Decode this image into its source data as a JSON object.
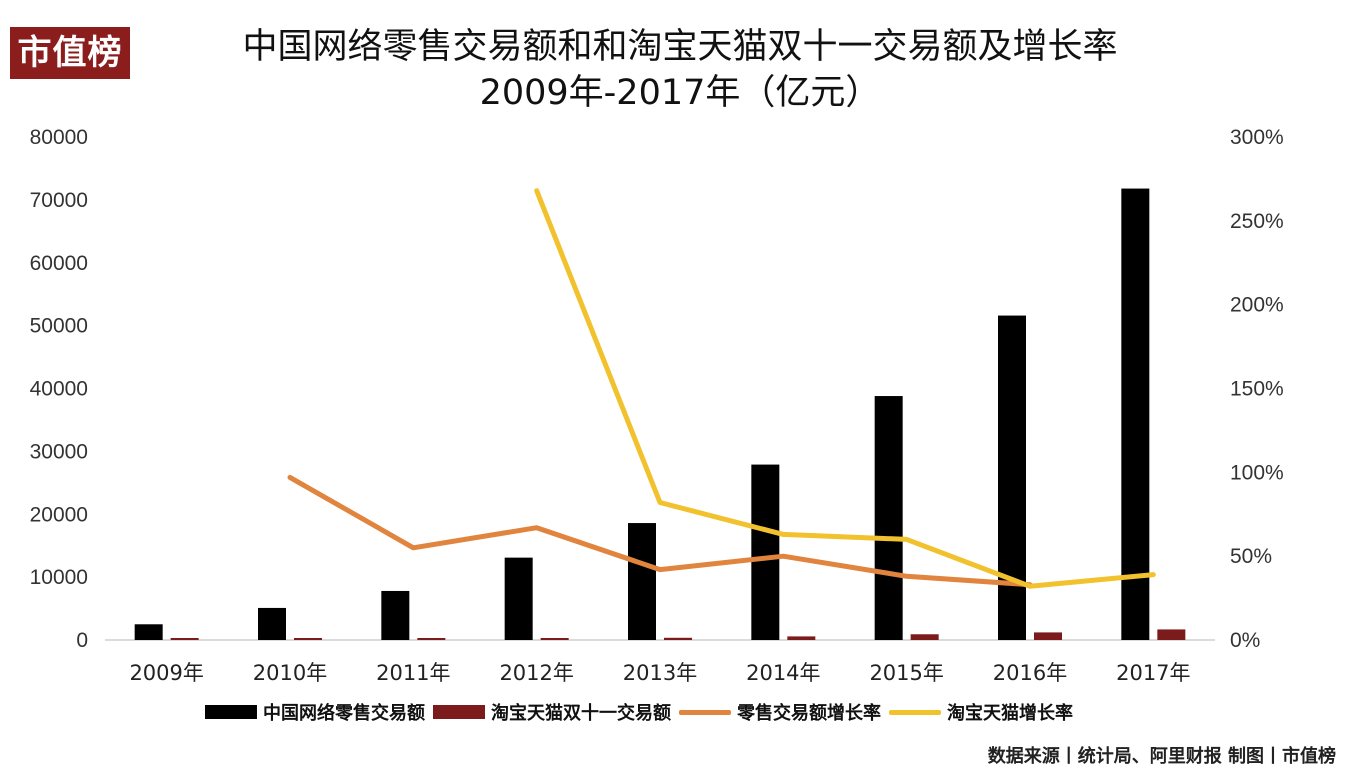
{
  "logo_text": "市值榜",
  "title_line1": "中国网络零售交易额和和淘宝天猫双十一交易额及增长率",
  "title_line2": "2009年-2017年（亿元）",
  "source": "数据来源丨统计局、阿里财报 制图丨市值榜",
  "colors": {
    "retail_bar": "#000000",
    "taobao_bar": "#7b1b1b",
    "retail_growth": "#e0843e",
    "taobao_growth": "#f2c12e",
    "logo_bg": "#8b1d1d"
  },
  "chart_data": {
    "type": "bar",
    "title": "",
    "categories": [
      "2009年",
      "2010年",
      "2011年",
      "2012年",
      "2013年",
      "2014年",
      "2015年",
      "2016年",
      "2017年"
    ],
    "y_left": {
      "min": 0,
      "max": 80000,
      "ticks": [
        "80000",
        "70000",
        "60000",
        "50000",
        "40000",
        "30000",
        "20000",
        "10000",
        "0"
      ]
    },
    "y_right": {
      "min": 0,
      "max": 300,
      "ticks": [
        "300%",
        "250%",
        "200%",
        "150%",
        "100%",
        "50%",
        "0%"
      ]
    },
    "series": [
      {
        "name": "中国网络零售交易额",
        "type": "bar",
        "axis": "left",
        "color": "#000000",
        "values": [
          2500,
          5100,
          7800,
          13100,
          18600,
          27900,
          38800,
          51600,
          71800
        ]
      },
      {
        "name": "淘宝天猫双十一交易额",
        "type": "bar",
        "axis": "left",
        "color": "#7b1b1b",
        "values": [
          0.5,
          9.4,
          52,
          191,
          350,
          571,
          912,
          1207,
          1682
        ]
      },
      {
        "name": "零售交易额增长率",
        "type": "line",
        "axis": "right",
        "color": "#e0843e",
        "values": [
          null,
          97,
          55,
          67,
          42,
          50,
          38,
          33,
          null
        ]
      },
      {
        "name": "淘宝天猫增长率",
        "type": "line",
        "axis": "right",
        "color": "#f2c12e",
        "values": [
          null,
          null,
          null,
          268,
          82,
          63,
          60,
          32,
          39
        ]
      }
    ],
    "legend_position": "bottom",
    "grid": false
  }
}
